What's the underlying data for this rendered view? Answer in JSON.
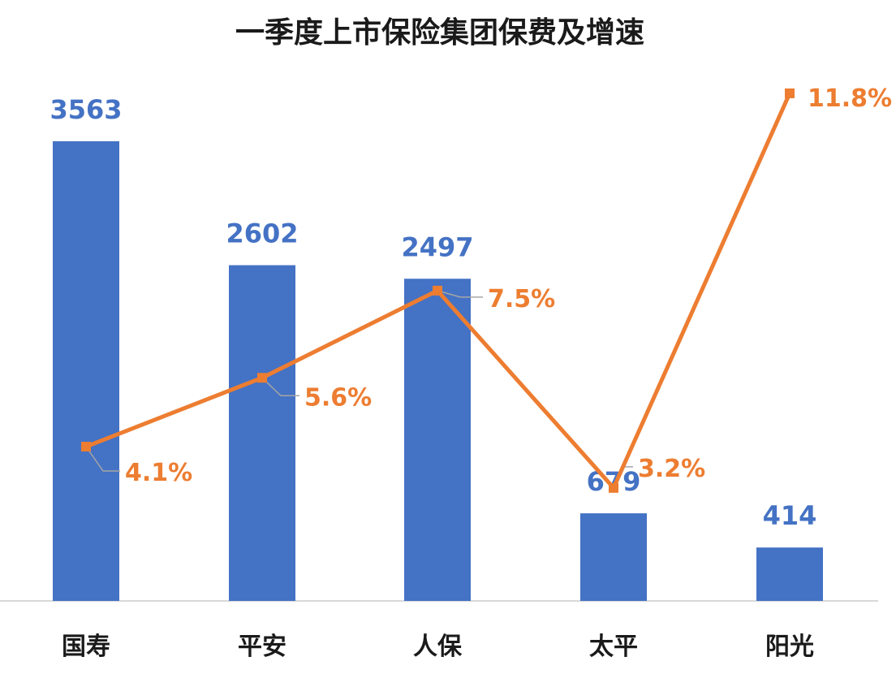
{
  "colors": {
    "bar": "#4472c4",
    "line": "#ed7d31",
    "leader": "#a6a6a6",
    "axis": "#d9d9d9",
    "title": "#1a1a1a"
  },
  "chart_data": {
    "type": "bar",
    "title": "一季度上市保险集团保费及增速",
    "categories": [
      "国寿",
      "平安",
      "人保",
      "太平",
      "阳光"
    ],
    "series": [
      {
        "type": "bar",
        "values": [
          3563,
          2602,
          2497,
          679,
          414
        ],
        "labels": [
          "3563",
          "2602",
          "2497",
          "679",
          "414"
        ]
      },
      {
        "type": "line",
        "values": [
          4.1,
          5.6,
          7.5,
          3.2,
          11.8
        ],
        "labels": [
          "4.1%",
          "5.6%",
          "7.5%",
          "3.2%",
          "11.8%"
        ]
      }
    ],
    "grid": false,
    "legend": "none"
  }
}
